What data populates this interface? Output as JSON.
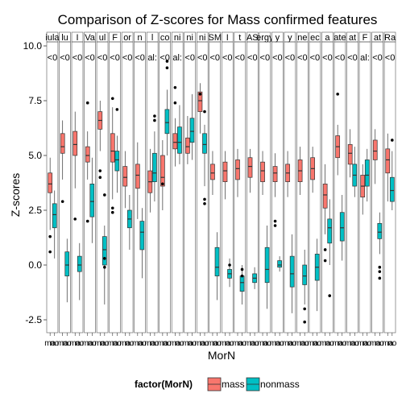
{
  "chart_data": {
    "type": "box",
    "title": "Comparison of Z-scores for Mass confirmed features",
    "xlabel": "MorN",
    "ylabel": "Z-scores",
    "ylim": [
      -3.0,
      10.2
    ],
    "y_ticks": [
      -2.5,
      0.0,
      2.5,
      5.0,
      7.5,
      10.0
    ],
    "y_tick_labels": [
      "-2.5",
      "0.0",
      "2.5",
      "5.0",
      "7.5",
      "10.0"
    ],
    "grid": false,
    "legend": {
      "title": "factor(MorN)",
      "placement": "bottom",
      "entries": [
        "mass",
        "nonmass"
      ]
    },
    "colors": {
      "mass": "#f8766d",
      "nonmass": "#00bfc4",
      "outline": "#333333",
      "panel_border": "#555555"
    },
    "bottom_tick_labels": [
      "ma",
      "no"
    ],
    "panels": [
      {
        "strip": "iula",
        "value_label": "<0",
        "mass": {
          "q1": 3.3,
          "median": 3.7,
          "q3": 4.2,
          "whisker_low": 1.6,
          "whisker_high": 4.9,
          "outliers": [
            1.3,
            0.6
          ]
        },
        "nonmass": {
          "q1": 1.7,
          "median": 2.3,
          "q3": 2.8,
          "whisker_low": 0.3,
          "whisker_high": 3.4,
          "outliers": []
        }
      },
      {
        "strip": "lu",
        "value_label": "<0",
        "mass": {
          "q1": 5.1,
          "median": 5.4,
          "q3": 6.0,
          "whisker_low": 3.9,
          "whisker_high": 6.6,
          "outliers": [
            2.9
          ]
        },
        "nonmass": {
          "q1": -0.5,
          "median": 0.0,
          "q3": 0.6,
          "whisker_low": -1.7,
          "whisker_high": 1.2,
          "outliers": []
        }
      },
      {
        "strip": "I",
        "value_label": "<0",
        "mass": {
          "q1": 5.0,
          "median": 5.5,
          "q3": 6.1,
          "whisker_low": 3.5,
          "whisker_high": 7.0,
          "outliers": [
            2.1
          ]
        },
        "nonmass": {
          "q1": -0.3,
          "median": 0.0,
          "q3": 0.4,
          "whisker_low": -1.6,
          "whisker_high": 1.0,
          "outliers": []
        }
      },
      {
        "strip": "Va",
        "value_label": "<0",
        "mass": {
          "q1": 4.7,
          "median": 5.0,
          "q3": 5.4,
          "whisker_low": 3.9,
          "whisker_high": 6.1,
          "outliers": [
            7.4,
            2.0
          ]
        },
        "nonmass": {
          "q1": 2.2,
          "median": 2.9,
          "q3": 3.7,
          "whisker_low": 1.0,
          "whisker_high": 4.9,
          "outliers": []
        }
      },
      {
        "strip": "ul",
        "value_label": "<0",
        "mass": {
          "q1": 6.2,
          "median": 6.6,
          "q3": 7.0,
          "whisker_low": 5.2,
          "whisker_high": 7.5,
          "outliers": [
            4.3,
            4.0
          ]
        },
        "nonmass": {
          "q1": 0.0,
          "median": 0.7,
          "q3": 1.3,
          "whisker_low": -1.8,
          "whisker_high": 1.8,
          "outliers": [
            0.3,
            -0.1,
            3.2
          ]
        }
      },
      {
        "strip": "F",
        "value_label": "<0",
        "mass": {
          "q1": 4.7,
          "median": 5.2,
          "q3": 6.0,
          "whisker_low": 3.0,
          "whisker_high": 7.2,
          "outliers": [
            7.6,
            2.6,
            2.4
          ]
        },
        "nonmass": {
          "q1": 4.3,
          "median": 4.8,
          "q3": 5.2,
          "whisker_low": 3.3,
          "whisker_high": 5.9,
          "outliers": [
            7.1
          ]
        }
      },
      {
        "strip": "or",
        "value_label": "<0",
        "mass": {
          "q1": 3.6,
          "median": 4.0,
          "q3": 4.5,
          "whisker_low": 2.6,
          "whisker_high": 5.2,
          "outliers": []
        },
        "nonmass": {
          "q1": 1.7,
          "median": 2.1,
          "q3": 2.5,
          "whisker_low": 0.7,
          "whisker_high": 3.2,
          "outliers": []
        }
      },
      {
        "strip": "n",
        "value_label": "<0",
        "mass": {
          "q1": 3.5,
          "median": 4.1,
          "q3": 4.6,
          "whisker_low": 2.1,
          "whisker_high": 5.6,
          "outliers": []
        },
        "nonmass": {
          "q1": 0.7,
          "median": 1.5,
          "q3": 2.0,
          "whisker_low": -0.6,
          "whisker_high": 2.6,
          "outliers": []
        }
      },
      {
        "strip": "l",
        "value_label": "al:",
        "mass": {
          "q1": 3.3,
          "median": 3.8,
          "q3": 4.3,
          "whisker_low": 2.4,
          "whisker_high": 5.3,
          "outliers": []
        },
        "nonmass": {
          "q1": 3.8,
          "median": 4.2,
          "q3": 5.1,
          "whisker_low": 2.9,
          "whisker_high": 6.1,
          "outliers": [
            6.8,
            6.6
          ]
        }
      },
      {
        "strip": "co",
        "value_label": "<0",
        "mass": {
          "q1": 3.6,
          "median": 4.0,
          "q3": 5.0,
          "whisker_low": 2.5,
          "whisker_high": 5.7,
          "outliers": [
            3.7
          ]
        },
        "nonmass": {
          "q1": 6.0,
          "median": 6.5,
          "q3": 7.1,
          "whisker_low": 5.0,
          "whisker_high": 8.0,
          "outliers": [
            9.0,
            9.3
          ]
        }
      },
      {
        "strip": "ni",
        "value_label": "al:",
        "mass": {
          "q1": 5.3,
          "median": 5.6,
          "q3": 6.0,
          "whisker_low": 4.5,
          "whisker_high": 6.7,
          "outliers": [
            7.4,
            8.1
          ]
        },
        "nonmass": {
          "q1": 5.1,
          "median": 5.6,
          "q3": 6.3,
          "whisker_low": 4.6,
          "whisker_high": 7.3,
          "outliers": []
        }
      },
      {
        "strip": "ni",
        "value_label": "<0",
        "mass": {
          "q1": 5.1,
          "median": 5.4,
          "q3": 5.8,
          "whisker_low": 4.6,
          "whisker_high": 6.8,
          "outliers": []
        },
        "nonmass": {
          "q1": 5.6,
          "median": 6.1,
          "q3": 6.7,
          "whisker_low": 4.8,
          "whisker_high": 7.8,
          "outliers": []
        }
      },
      {
        "strip": "ni",
        "value_label": "<0",
        "mass": {
          "q1": 7.0,
          "median": 7.5,
          "q3": 7.9,
          "whisker_low": 6.0,
          "whisker_high": 8.3,
          "outliers": [
            7.8
          ]
        },
        "nonmass": {
          "q1": 5.1,
          "median": 5.5,
          "q3": 6.0,
          "whisker_low": 3.6,
          "whisker_high": 6.4,
          "outliers": [
            3.0,
            2.8,
            7.0
          ]
        }
      },
      {
        "strip": "SM",
        "value_label": "<0",
        "mass": {
          "q1": 3.9,
          "median": 4.2,
          "q3": 4.6,
          "whisker_low": 3.2,
          "whisker_high": 5.2,
          "outliers": []
        },
        "nonmass": {
          "q1": -0.5,
          "median": -0.1,
          "q3": 0.8,
          "whisker_low": -1.6,
          "whisker_high": 1.5,
          "outliers": []
        }
      },
      {
        "strip": "I",
        "value_label": "<0",
        "mass": {
          "q1": 3.8,
          "median": 4.3,
          "q3": 4.7,
          "whisker_low": 3.0,
          "whisker_high": 5.2,
          "outliers": []
        },
        "nonmass": {
          "q1": -0.6,
          "median": -0.4,
          "q3": -0.2,
          "whisker_low": -1.0,
          "whisker_high": 0.3,
          "outliers": [
            0.0
          ]
        }
      },
      {
        "strip": "t",
        "value_label": "<0",
        "mass": {
          "q1": 3.9,
          "median": 4.4,
          "q3": 4.8,
          "whisker_low": 3.1,
          "whisker_high": 5.3,
          "outliers": []
        },
        "nonmass": {
          "q1": -1.2,
          "median": -0.8,
          "q3": -0.5,
          "whisker_low": -1.8,
          "whisker_high": 0.0,
          "outliers": [
            -0.5,
            -0.2
          ]
        }
      },
      {
        "strip": "AS",
        "value_label": "<0",
        "mass": {
          "q1": 4.0,
          "median": 4.5,
          "q3": 4.9,
          "whisker_low": 3.3,
          "whisker_high": 5.3,
          "outliers": []
        },
        "nonmass": {
          "q1": -0.8,
          "median": -0.6,
          "q3": -0.4,
          "whisker_low": -1.1,
          "whisker_high": -0.1,
          "outliers": []
        }
      },
      {
        "strip": "ergy",
        "value_label": "<0",
        "mass": {
          "q1": 3.8,
          "median": 4.3,
          "q3": 4.7,
          "whisker_low": 3.2,
          "whisker_high": 5.2,
          "outliers": []
        },
        "nonmass": {
          "q1": -0.8,
          "median": -0.2,
          "q3": 0.8,
          "whisker_low": -2.0,
          "whisker_high": 1.8,
          "outliers": []
        }
      },
      {
        "strip": "y",
        "value_label": "<0",
        "mass": {
          "q1": 3.8,
          "median": 4.2,
          "q3": 4.5,
          "whisker_low": 3.1,
          "whisker_high": 5.1,
          "outliers": [
            2.0,
            1.8
          ]
        },
        "nonmass": {
          "q1": -0.1,
          "median": 0.0,
          "q3": 0.2,
          "whisker_low": -0.3,
          "whisker_high": 0.4,
          "outliers": []
        }
      },
      {
        "strip": "y",
        "value_label": "<0",
        "mass": {
          "q1": 3.8,
          "median": 4.2,
          "q3": 4.6,
          "whisker_low": 3.1,
          "whisker_high": 5.2,
          "outliers": []
        },
        "nonmass": {
          "q1": -1.0,
          "median": -0.4,
          "q3": 0.4,
          "whisker_low": -2.2,
          "whisker_high": 1.4,
          "outliers": []
        }
      },
      {
        "strip": "ne",
        "value_label": "<0",
        "mass": {
          "q1": 3.8,
          "median": 4.3,
          "q3": 4.8,
          "whisker_low": 3.2,
          "whisker_high": 5.4,
          "outliers": []
        },
        "nonmass": {
          "q1": -0.9,
          "median": -0.5,
          "q3": 0.0,
          "whisker_low": -1.8,
          "whisker_high": 0.7,
          "outliers": [
            -2.6,
            -2.0
          ]
        }
      },
      {
        "strip": "ec",
        "value_label": "<0",
        "mass": {
          "q1": 3.9,
          "median": 4.4,
          "q3": 4.9,
          "whisker_low": 3.3,
          "whisker_high": 5.4,
          "outliers": []
        },
        "nonmass": {
          "q1": -0.7,
          "median": -0.1,
          "q3": 0.5,
          "whisker_low": -2.1,
          "whisker_high": 1.2,
          "outliers": []
        }
      },
      {
        "strip": "a",
        "value_label": "<0",
        "mass": {
          "q1": 2.6,
          "median": 3.2,
          "q3": 3.7,
          "whisker_low": 1.4,
          "whisker_high": 4.6,
          "outliers": [
            0.7,
            0.2
          ]
        },
        "nonmass": {
          "q1": 1.0,
          "median": 1.7,
          "q3": 2.1,
          "whisker_low": 0.0,
          "whisker_high": 3.0,
          "outliers": [
            -1.4
          ]
        }
      },
      {
        "strip": "ate",
        "value_label": "<0",
        "mass": {
          "q1": 4.9,
          "median": 5.4,
          "q3": 5.9,
          "whisker_low": 4.1,
          "whisker_high": 6.4,
          "outliers": [
            7.8
          ]
        },
        "nonmass": {
          "q1": 1.1,
          "median": 1.7,
          "q3": 2.4,
          "whisker_low": 0.2,
          "whisker_high": 3.2,
          "outliers": []
        }
      },
      {
        "strip": "at",
        "value_label": "<0",
        "mass": {
          "q1": 4.6,
          "median": 5.1,
          "q3": 5.5,
          "whisker_low": 4.0,
          "whisker_high": 6.2,
          "outliers": []
        },
        "nonmass": {
          "q1": 3.6,
          "median": 4.1,
          "q3": 4.6,
          "whisker_low": 3.1,
          "whisker_high": 5.4,
          "outliers": []
        }
      },
      {
        "strip": "F",
        "value_label": "al:",
        "mass": {
          "q1": 3.1,
          "median": 3.6,
          "q3": 4.1,
          "whisker_low": 2.3,
          "whisker_high": 4.6,
          "outliers": []
        },
        "nonmass": {
          "q1": 3.6,
          "median": 4.1,
          "q3": 4.8,
          "whisker_low": 2.9,
          "whisker_high": 5.3,
          "outliers": []
        }
      },
      {
        "strip": "at",
        "value_label": "<0",
        "mass": {
          "q1": 4.8,
          "median": 5.2,
          "q3": 5.7,
          "whisker_low": 3.7,
          "whisker_high": 6.2,
          "outliers": []
        },
        "nonmass": {
          "q1": 1.2,
          "median": 1.5,
          "q3": 1.9,
          "whisker_low": 0.5,
          "whisker_high": 2.4,
          "outliers": [
            -0.1,
            -0.3,
            -0.6
          ]
        }
      },
      {
        "strip": "Ra",
        "value_label": "<0",
        "mass": {
          "q1": 4.2,
          "median": 4.8,
          "q3": 5.3,
          "whisker_low": 2.9,
          "whisker_high": 6.0,
          "outliers": []
        },
        "nonmass": {
          "q1": 2.9,
          "median": 3.4,
          "q3": 4.0,
          "whisker_low": 2.5,
          "whisker_high": 5.2,
          "outliers": [
            5.7
          ]
        }
      }
    ]
  }
}
